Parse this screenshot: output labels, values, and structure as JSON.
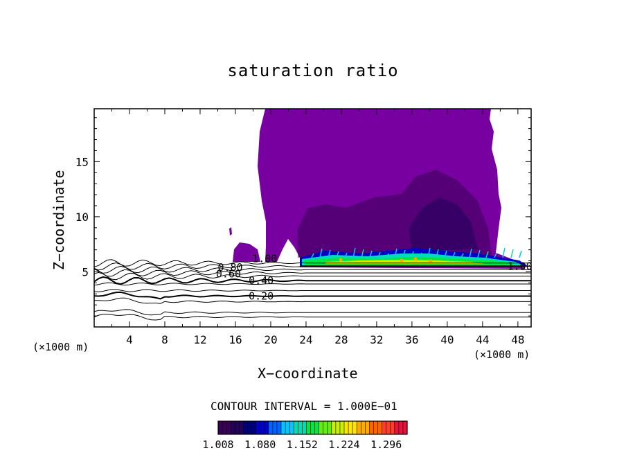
{
  "chart_data": {
    "type": "contour",
    "title": "saturation ratio",
    "xlabel": "X−coordinate",
    "ylabel": "Z−coordinate",
    "x_unit_left": "(×1000 m)",
    "x_unit_right": "(×1000 m)",
    "xlim": [
      0,
      49.5
    ],
    "ylim": [
      0,
      19.8
    ],
    "x_ticks": [
      4,
      8,
      12,
      16,
      20,
      24,
      28,
      32,
      36,
      40,
      44,
      48
    ],
    "y_ticks": [
      5,
      10,
      15
    ],
    "contour_lines": [
      {
        "level": 0.2,
        "label": "0.20",
        "label_x": 17.5,
        "z": 2.8
      },
      {
        "level": 0.4,
        "label": "0.40",
        "label_x": 17.5,
        "z": 4.2
      },
      {
        "level": 0.6,
        "label": "0.60",
        "label_x": 13.8,
        "z": 4.8
      },
      {
        "level": 0.8,
        "label": "0.80",
        "label_x": 14.0,
        "z": 5.4
      },
      {
        "level": 1.0,
        "label": "1.00",
        "label_x": 17.9,
        "z": 6.2
      },
      {
        "level": 1.0,
        "label": "1.00",
        "label_x": 46.8,
        "z": 5.5
      }
    ],
    "contour_interval_text": "CONTOUR INTERVAL = 1.000E−01",
    "colorbar": {
      "min": 1.008,
      "max": 1.332,
      "tick_labels": [
        "1.008",
        "1.080",
        "1.152",
        "1.224",
        "1.296"
      ],
      "colors": [
        "#3a0058",
        "#23005a",
        "#00007a",
        "#0000c8",
        "#0064ff",
        "#00c8ff",
        "#00dcb4",
        "#00e646",
        "#64f000",
        "#c8f000",
        "#ffe600",
        "#ffaa00",
        "#ff6400",
        "#ff3c28",
        "#e6143c"
      ]
    },
    "fill_color": "#7800a0",
    "grid": false,
    "legend": "none"
  }
}
